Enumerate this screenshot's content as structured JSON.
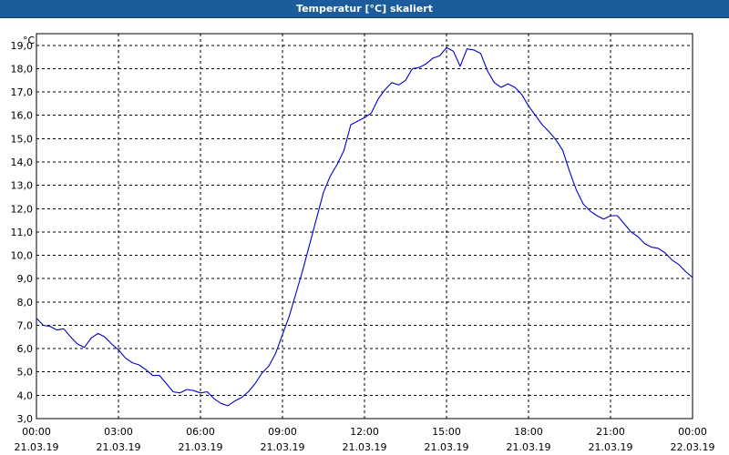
{
  "window": {
    "title": "Temperatur [°C] skaliert"
  },
  "colors": {
    "titlebar": "#1c5c9a",
    "line": "#0000cc",
    "grid": "#000000"
  },
  "chart_data": {
    "type": "line",
    "title": "Temperatur [°C] skaliert",
    "ylabel": "°C",
    "xlabel": "",
    "ylim": [
      3.0,
      19.5
    ],
    "xlim_hours": [
      0,
      24
    ],
    "grid": true,
    "y_ticks": [
      "3,0",
      "4,0",
      "5,0",
      "6,0",
      "7,0",
      "8,0",
      "9,0",
      "10,0",
      "11,0",
      "12,0",
      "13,0",
      "14,0",
      "15,0",
      "16,0",
      "17,0",
      "18,0",
      "19,0"
    ],
    "x_ticks": [
      {
        "time": "00:00",
        "date": "21.03.19"
      },
      {
        "time": "03:00",
        "date": "21.03.19"
      },
      {
        "time": "06:00",
        "date": "21.03.19"
      },
      {
        "time": "09:00",
        "date": "21.03.19"
      },
      {
        "time": "12:00",
        "date": "21.03.19"
      },
      {
        "time": "15:00",
        "date": "21.03.19"
      },
      {
        "time": "18:00",
        "date": "21.03.19"
      },
      {
        "time": "21:00",
        "date": "21.03.19"
      },
      {
        "time": "00:00",
        "date": "22.03.19"
      }
    ],
    "series": [
      {
        "x": [
          0,
          0.25,
          0.5,
          0.75,
          1,
          1.25,
          1.5,
          1.75,
          2,
          2.25,
          2.5,
          2.75,
          3,
          3.25,
          3.5,
          3.75,
          4,
          4.25,
          4.5,
          4.75,
          5,
          5.25,
          5.5,
          5.75,
          6,
          6.25,
          6.5,
          6.75,
          7,
          7.25,
          7.5,
          7.75,
          8,
          8.25,
          8.5,
          8.75,
          9,
          9.25,
          9.5,
          9.75,
          10,
          10.25,
          10.5,
          10.75,
          11,
          11.25,
          11.5,
          11.75,
          12,
          12.25,
          12.5,
          12.75,
          13,
          13.25,
          13.5,
          13.75,
          14,
          14.25,
          14.5,
          14.75,
          15,
          15.25,
          15.5,
          15.75,
          16,
          16.25,
          16.5,
          16.75,
          17,
          17.25,
          17.5,
          17.75,
          18,
          18.25,
          18.5,
          18.75,
          19,
          19.25,
          19.5,
          19.75,
          20,
          20.25,
          20.5,
          20.75,
          21,
          21.25,
          21.5,
          21.75,
          22,
          22.25,
          22.5,
          22.75,
          23,
          23.25,
          23.5,
          23.75,
          24
        ],
        "y": [
          7.3,
          7.0,
          6.95,
          6.8,
          6.85,
          6.5,
          6.2,
          6.05,
          6.45,
          6.65,
          6.5,
          6.2,
          5.95,
          5.6,
          5.4,
          5.3,
          5.1,
          4.85,
          4.85,
          4.5,
          4.15,
          4.1,
          4.25,
          4.2,
          4.1,
          4.15,
          3.85,
          3.65,
          3.55,
          3.75,
          3.9,
          4.15,
          4.5,
          4.95,
          5.25,
          5.8,
          6.6,
          7.4,
          8.4,
          9.4,
          10.5,
          11.6,
          12.7,
          13.4,
          13.9,
          14.5,
          15.6,
          15.75,
          15.9,
          16.1,
          16.7,
          17.1,
          17.4,
          17.3,
          17.5,
          18.0,
          18.05,
          18.2,
          18.45,
          18.55,
          18.9,
          18.75,
          18.1,
          18.85,
          18.8,
          18.65,
          17.9,
          17.4,
          17.2,
          17.35,
          17.2,
          16.9,
          16.4,
          16.0,
          15.6,
          15.3,
          14.95,
          14.5,
          13.6,
          12.8,
          12.2,
          11.9,
          11.7,
          11.55,
          11.7,
          11.7,
          11.35,
          11.0,
          10.8,
          10.5,
          10.35,
          10.3,
          10.1,
          9.8,
          9.6,
          9.3,
          9.05
        ]
      }
    ]
  }
}
